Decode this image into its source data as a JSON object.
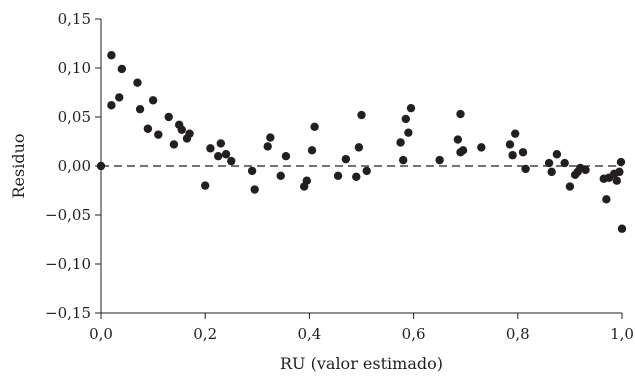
{
  "chart_data": {
    "type": "scatter",
    "xlabel": "RU (valor estimado)",
    "ylabel": "Residuo",
    "xlim": [
      0.0,
      1.0
    ],
    "ylim": [
      -0.15,
      0.15
    ],
    "x_ticks": [
      0.0,
      0.2,
      0.4,
      0.6,
      0.8,
      1.0
    ],
    "x_tick_labels": [
      "0,0",
      "0,2",
      "0,4",
      "0,6",
      "0,8",
      "1,0"
    ],
    "y_ticks": [
      0.15,
      0.1,
      0.05,
      0.0,
      -0.05,
      -0.1,
      -0.15
    ],
    "y_tick_labels": [
      "0,15",
      "0,10",
      "0,05",
      "0,00",
      "−0,05",
      "−0,10",
      "−0,15"
    ],
    "grid": false,
    "reference_line": {
      "y": 0.0,
      "style": "dashed"
    },
    "marker_color": "#231f20",
    "series": [
      {
        "points": [
          [
            0.0,
            0.0
          ],
          [
            0.02,
            0.113
          ],
          [
            0.02,
            0.062
          ],
          [
            0.035,
            0.07
          ],
          [
            0.04,
            0.099
          ],
          [
            0.07,
            0.085
          ],
          [
            0.075,
            0.058
          ],
          [
            0.09,
            0.038
          ],
          [
            0.1,
            0.067
          ],
          [
            0.11,
            0.032
          ],
          [
            0.13,
            0.05
          ],
          [
            0.14,
            0.022
          ],
          [
            0.15,
            0.042
          ],
          [
            0.155,
            0.037
          ],
          [
            0.165,
            0.028
          ],
          [
            0.17,
            0.033
          ],
          [
            0.2,
            -0.02
          ],
          [
            0.21,
            0.018
          ],
          [
            0.225,
            0.01
          ],
          [
            0.23,
            0.023
          ],
          [
            0.24,
            0.012
          ],
          [
            0.25,
            0.005
          ],
          [
            0.29,
            -0.005
          ],
          [
            0.295,
            -0.024
          ],
          [
            0.32,
            0.02
          ],
          [
            0.325,
            0.029
          ],
          [
            0.345,
            -0.01
          ],
          [
            0.355,
            0.01
          ],
          [
            0.39,
            -0.021
          ],
          [
            0.395,
            -0.015
          ],
          [
            0.405,
            0.016
          ],
          [
            0.41,
            0.04
          ],
          [
            0.455,
            -0.01
          ],
          [
            0.47,
            0.007
          ],
          [
            0.49,
            -0.011
          ],
          [
            0.495,
            0.019
          ],
          [
            0.5,
            0.052
          ],
          [
            0.51,
            -0.005
          ],
          [
            0.575,
            0.024
          ],
          [
            0.58,
            0.006
          ],
          [
            0.585,
            0.048
          ],
          [
            0.59,
            0.034
          ],
          [
            0.595,
            0.059
          ],
          [
            0.65,
            0.006
          ],
          [
            0.685,
            0.027
          ],
          [
            0.69,
            0.014
          ],
          [
            0.69,
            0.053
          ],
          [
            0.695,
            0.016
          ],
          [
            0.73,
            0.019
          ],
          [
            0.785,
            0.022
          ],
          [
            0.79,
            0.011
          ],
          [
            0.795,
            0.033
          ],
          [
            0.81,
            0.014
          ],
          [
            0.815,
            -0.003
          ],
          [
            0.86,
            0.003
          ],
          [
            0.865,
            -0.006
          ],
          [
            0.875,
            0.012
          ],
          [
            0.89,
            0.003
          ],
          [
            0.9,
            -0.021
          ],
          [
            0.91,
            -0.009
          ],
          [
            0.915,
            -0.006
          ],
          [
            0.92,
            -0.002
          ],
          [
            0.93,
            -0.004
          ],
          [
            0.965,
            -0.013
          ],
          [
            0.97,
            -0.034
          ],
          [
            0.975,
            -0.012
          ],
          [
            0.985,
            -0.008
          ],
          [
            0.99,
            -0.015
          ],
          [
            0.995,
            -0.006
          ],
          [
            0.998,
            0.004
          ],
          [
            1.0,
            -0.064
          ]
        ]
      }
    ]
  }
}
